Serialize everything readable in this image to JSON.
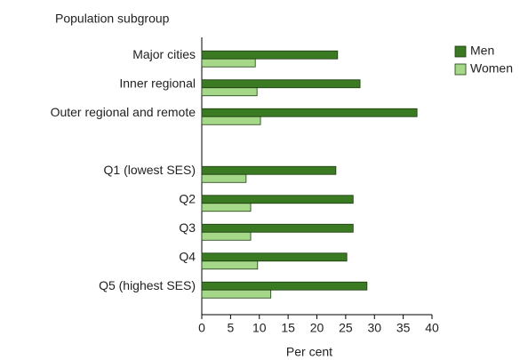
{
  "chart_data": {
    "type": "hbar",
    "y_axis_label": "Population subgroup",
    "x_axis_label": "Per cent",
    "categories": [
      "Major cities",
      "Inner regional",
      "Outer regional and remote",
      null,
      "Q1 (lowest SES)",
      "Q2",
      "Q3",
      "Q4",
      "Q5 (highest SES)"
    ],
    "series": [
      {
        "name": "Men",
        "color": "#3a7a22",
        "values": [
          23.6,
          27.5,
          37.4,
          null,
          23.3,
          26.3,
          26.3,
          25.2,
          28.7
        ]
      },
      {
        "name": "Women",
        "color": "#a6d889",
        "values": [
          9.3,
          9.6,
          10.2,
          null,
          7.7,
          8.5,
          8.5,
          9.7,
          12.0
        ]
      }
    ],
    "xlim": [
      0,
      40
    ],
    "xticks": [
      0,
      5,
      10,
      15,
      20,
      25,
      30,
      35,
      40
    ],
    "legend": "top-right"
  }
}
